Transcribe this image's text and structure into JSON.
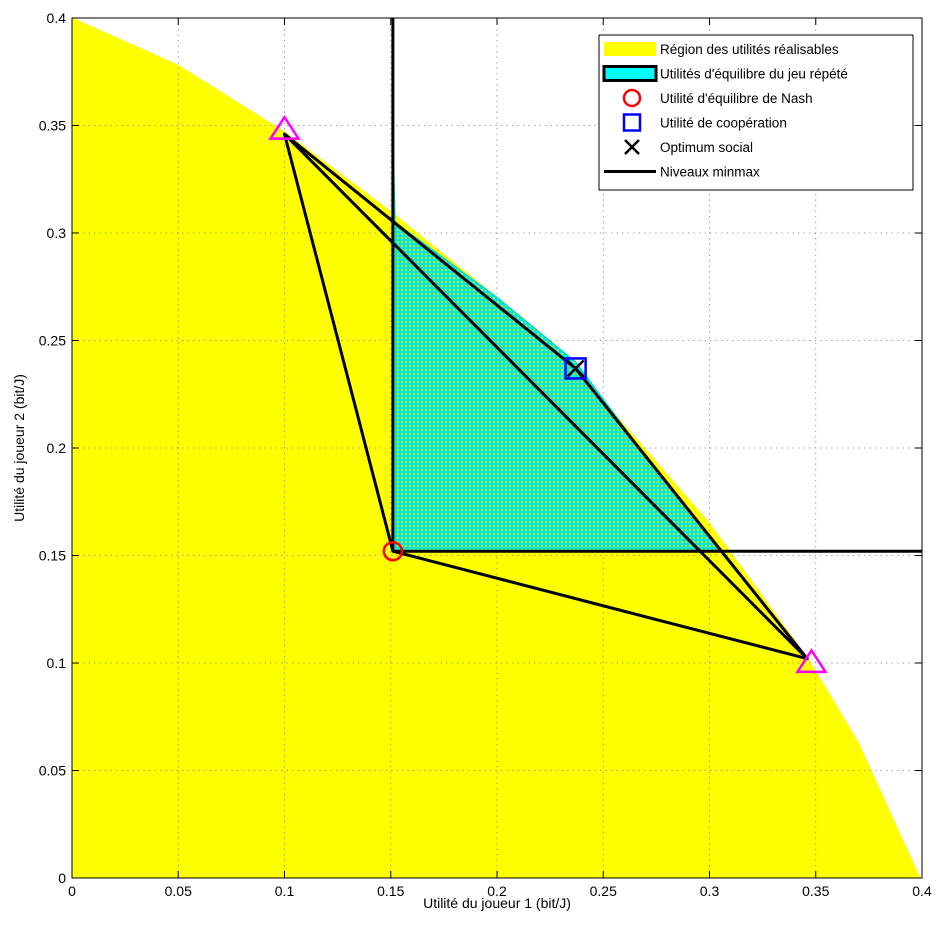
{
  "chart_data": {
    "type": "area",
    "title": "",
    "xlabel": "Utilité du joueur 1 (bit/J)",
    "ylabel": "Utilité du joueur 2 (bit/J)",
    "xlim": [
      0,
      0.4
    ],
    "ylim": [
      0,
      0.4
    ],
    "xticks": [
      0,
      0.05,
      0.1,
      0.15,
      0.2,
      0.25,
      0.3,
      0.35,
      0.4
    ],
    "yticks": [
      0,
      0.05,
      0.1,
      0.15,
      0.2,
      0.25,
      0.3,
      0.35,
      0.4
    ],
    "xtick_labels": [
      "0",
      "0.05",
      "0.1",
      "0.15",
      "0.2",
      "0.25",
      "0.3",
      "0.35",
      "0.4"
    ],
    "ytick_labels": [
      "0",
      "0.05",
      "0.1",
      "0.15",
      "0.2",
      "0.25",
      "0.3",
      "0.35",
      "0.4"
    ],
    "grid": true,
    "legend_position": "top-right",
    "colors": {
      "feasible": "#ffff00",
      "repeated": "#00ffff",
      "nash": "#ff0000",
      "cooperation": "#0000ff",
      "social": "#000000",
      "minmax": "#000000",
      "triangle": "#ff00ff"
    },
    "legend": [
      {
        "key": "feasible",
        "label": "Région des utilités réalisables"
      },
      {
        "key": "repeated",
        "label": "Utilités d'équilibre du jeu répété"
      },
      {
        "key": "nash",
        "label": "Utilité d'équilibre de Nash"
      },
      {
        "key": "cooperation",
        "label": "Utilité de coopération"
      },
      {
        "key": "social",
        "label": "Optimum social"
      },
      {
        "key": "minmax",
        "label": "Niveaux minmax"
      }
    ],
    "feasible_region_boundary": [
      [
        0,
        0.4
      ],
      [
        0.05,
        0.378
      ],
      [
        0.1,
        0.347
      ],
      [
        0.15,
        0.31
      ],
      [
        0.2,
        0.27
      ],
      [
        0.25,
        0.222
      ],
      [
        0.3,
        0.165
      ],
      [
        0.347,
        0.101
      ],
      [
        0.37,
        0.063
      ],
      [
        0.399,
        0
      ]
    ],
    "repeated_equilibrium_region": [
      [
        0.151,
        0.344
      ],
      [
        0.152,
        0.305
      ],
      [
        0.2,
        0.27
      ],
      [
        0.237,
        0.24
      ],
      [
        0.27,
        0.196
      ],
      [
        0.306,
        0.152
      ],
      [
        0.151,
        0.152
      ]
    ],
    "inner_triangle": [
      [
        0.1,
        0.346
      ],
      [
        0.151,
        0.152
      ],
      [
        0.346,
        0.102
      ]
    ],
    "outer_triangle": [
      [
        0.1,
        0.346
      ],
      [
        0.237,
        0.237
      ],
      [
        0.346,
        0.102
      ]
    ],
    "minmax_x": 0.151,
    "minmax_y": 0.152,
    "nash_point": [
      0.151,
      0.152
    ],
    "cooperation_point": [
      0.237,
      0.237
    ],
    "social_optimum_point": [
      0.237,
      0.237
    ],
    "extreme_points": [
      [
        0.1,
        0.348
      ],
      [
        0.348,
        0.1
      ]
    ]
  }
}
